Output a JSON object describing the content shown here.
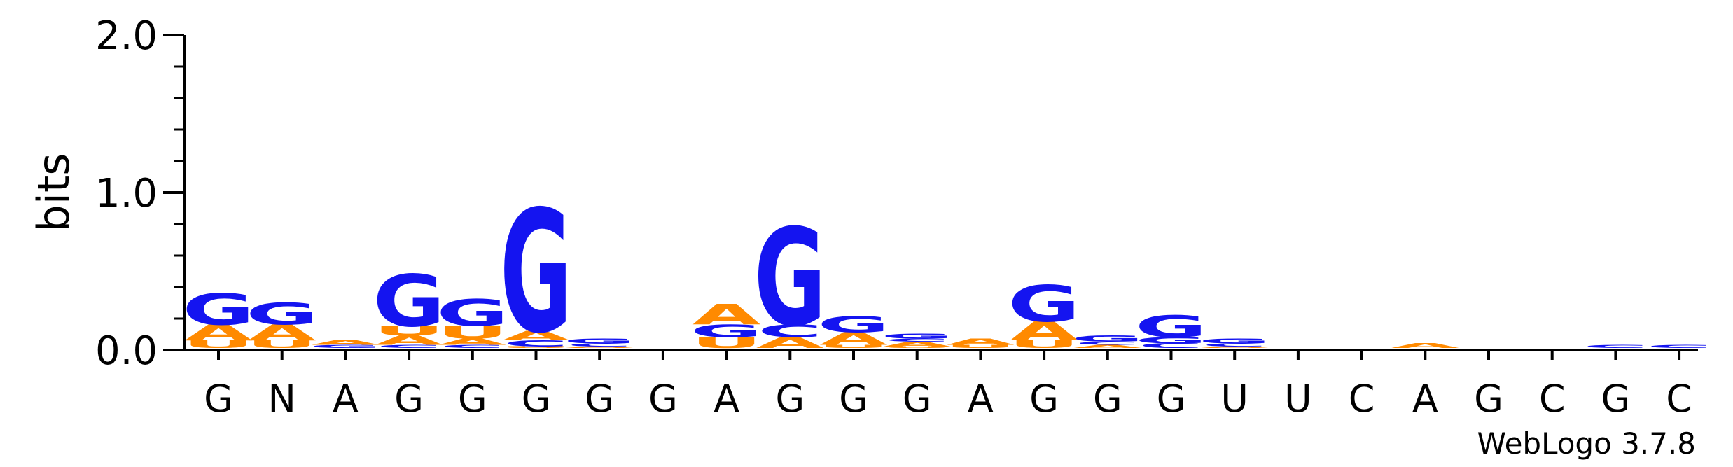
{
  "chart_data": {
    "type": "sequence-logo",
    "ylabel": "bits",
    "ylim": [
      0,
      2.0
    ],
    "ytick_labels": [
      "0.0",
      "1.0",
      "2.0"
    ],
    "yticks": [
      0,
      1,
      2
    ],
    "minor_ytick_step": 0.2,
    "xtick_labels": [
      "G",
      "N",
      "A",
      "G",
      "G",
      "G",
      "G",
      "G",
      "A",
      "G",
      "G",
      "G",
      "A",
      "G",
      "G",
      "G",
      "U",
      "U",
      "C",
      "A",
      "G",
      "C",
      "G",
      "C"
    ],
    "credit": "WebLogo 3.7.8",
    "colors": {
      "G": "#1414f0",
      "A": "#ff8a00",
      "U": "#ff8a00",
      "C": "#1414f0"
    },
    "columns": [
      [
        {
          "l": "U",
          "v": 0.05
        },
        {
          "l": "A",
          "v": 0.1
        },
        {
          "l": "G",
          "v": 0.2
        }
      ],
      [
        {
          "l": "U",
          "v": 0.05
        },
        {
          "l": "A",
          "v": 0.1
        },
        {
          "l": "G",
          "v": 0.14
        }
      ],
      [
        {
          "l": "G",
          "v": 0.02
        },
        {
          "l": "A",
          "v": 0.03
        }
      ],
      [
        {
          "l": "C",
          "v": 0.02
        },
        {
          "l": "A",
          "v": 0.06
        },
        {
          "l": "U",
          "v": 0.06
        },
        {
          "l": "G",
          "v": 0.33
        }
      ],
      [
        {
          "l": "C",
          "v": 0.02
        },
        {
          "l": "A",
          "v": 0.04
        },
        {
          "l": "U",
          "v": 0.08
        },
        {
          "l": "G",
          "v": 0.17
        }
      ],
      [
        {
          "l": "U",
          "v": 0.01
        },
        {
          "l": "C",
          "v": 0.04
        },
        {
          "l": "A",
          "v": 0.06
        },
        {
          "l": "G",
          "v": 0.78
        }
      ],
      [
        {
          "l": "A",
          "v": 0.01
        },
        {
          "l": "C",
          "v": 0.02
        },
        {
          "l": "G",
          "v": 0.03
        }
      ],
      [],
      [
        {
          "l": "U",
          "v": 0.07
        },
        {
          "l": "G",
          "v": 0.08
        },
        {
          "l": "A",
          "v": 0.13
        }
      ],
      [
        {
          "l": "A",
          "v": 0.07
        },
        {
          "l": "C",
          "v": 0.08
        },
        {
          "l": "G",
          "v": 0.62
        }
      ],
      [
        {
          "l": "U",
          "v": 0.02
        },
        {
          "l": "A",
          "v": 0.08
        },
        {
          "l": "G",
          "v": 0.1
        }
      ],
      [
        {
          "l": "U",
          "v": 0.01
        },
        {
          "l": "A",
          "v": 0.03
        },
        {
          "l": "C",
          "v": 0.02
        },
        {
          "l": "G",
          "v": 0.03
        }
      ],
      [
        {
          "l": "U",
          "v": 0.02
        },
        {
          "l": "A",
          "v": 0.04
        }
      ],
      [
        {
          "l": "U",
          "v": 0.05
        },
        {
          "l": "A",
          "v": 0.12
        },
        {
          "l": "G",
          "v": 0.23
        }
      ],
      [
        {
          "l": "A",
          "v": 0.02
        },
        {
          "l": "C",
          "v": 0.02
        },
        {
          "l": "G",
          "v": 0.04
        }
      ],
      [
        {
          "l": "C",
          "v": 0.03
        },
        {
          "l": "G",
          "v": 0.04
        },
        {
          "l": "G",
          "v": 0.14
        }
      ],
      [
        {
          "l": "A",
          "v": 0.01
        },
        {
          "l": "C",
          "v": 0.02
        },
        {
          "l": "G",
          "v": 0.03
        }
      ],
      [],
      [],
      [
        {
          "l": "A",
          "v": 0.03
        }
      ],
      [],
      [],
      [
        {
          "l": "C",
          "v": 0.02
        }
      ],
      [
        {
          "l": "C",
          "v": 0.02
        }
      ]
    ]
  }
}
